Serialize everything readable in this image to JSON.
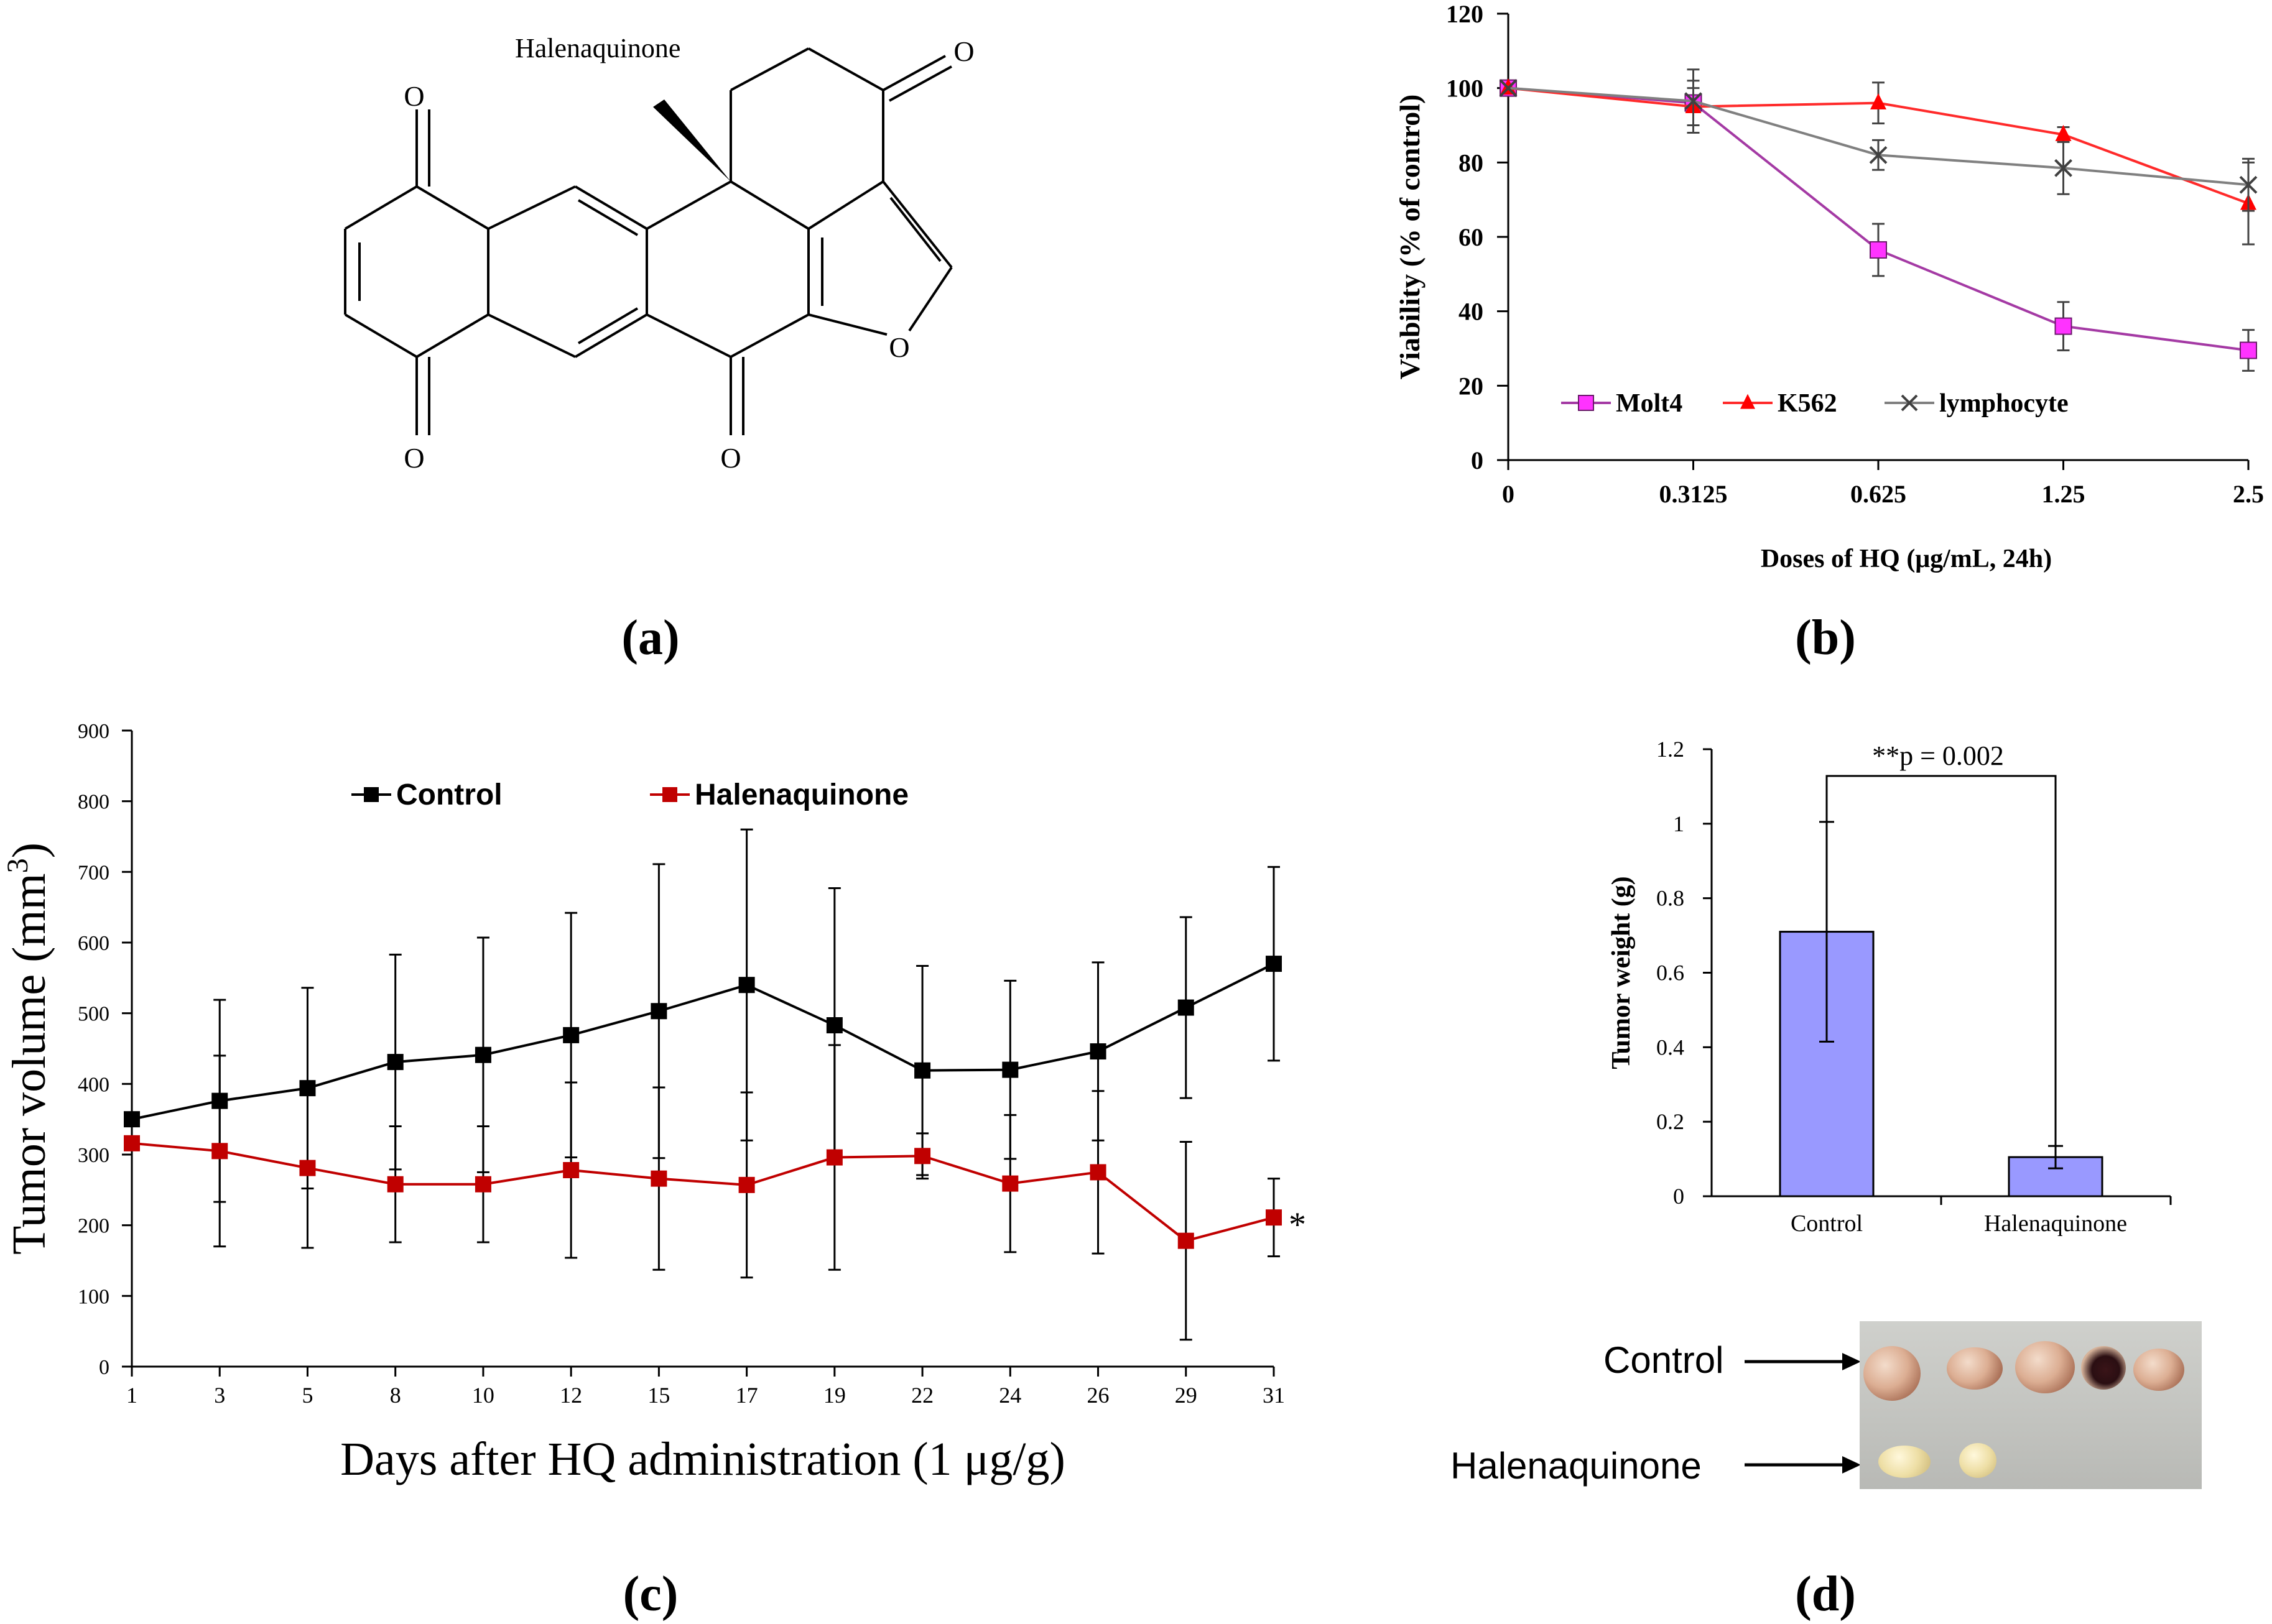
{
  "panel_labels": {
    "a": "(a)",
    "b": "(b)",
    "c": "(c)",
    "d": "(d)"
  },
  "structure": {
    "title": "Halenaquinone",
    "atoms": [
      "O",
      "O",
      "O",
      "O",
      "O"
    ]
  },
  "photo": {
    "control_label": "Control",
    "hq_label": "Halenaquinone"
  },
  "chart_data": [
    {
      "id": "b",
      "type": "line",
      "xlabel": "Doses of HQ (μg/mL, 24h)",
      "ylabel": "Viability (% of control)",
      "categories": [
        "0",
        "0.3125",
        "0.625",
        "1.25",
        "2.5"
      ],
      "ylim": [
        0,
        120
      ],
      "yticks": [
        0,
        20,
        40,
        60,
        80,
        100,
        120
      ],
      "legend": "bottom",
      "series": [
        {
          "name": "Molt4",
          "color": "#a43aa4",
          "marker": "square",
          "marker_color": "#ff33ff",
          "values": [
            100,
            96,
            56.5,
            36,
            29.5
          ],
          "errors": [
            0,
            6,
            7,
            6.5,
            5.5
          ]
        },
        {
          "name": "K562",
          "color": "#ff2a2a",
          "marker": "triangle",
          "marker_color": "#ff0000",
          "values": [
            100,
            95,
            96,
            87.5,
            69
          ],
          "errors": [
            0,
            5,
            5.5,
            2,
            11
          ]
        },
        {
          "name": "lymphocyte",
          "color": "#808080",
          "marker": "x",
          "marker_color": "#404040",
          "values": [
            100,
            96.5,
            82,
            78.5,
            74
          ],
          "errors": [
            0,
            8.5,
            4,
            7,
            7
          ]
        }
      ]
    },
    {
      "id": "c",
      "type": "line",
      "xlabel": "Days after HQ administration (1 μg/g)",
      "ylabel": "Tumor volume (mm",
      "ylabel_sup": "3",
      "ylabel_close": ")",
      "categories": [
        "1",
        "3",
        "5",
        "8",
        "10",
        "12",
        "15",
        "17",
        "19",
        "22",
        "24",
        "26",
        "29",
        "31"
      ],
      "ylim": [
        0,
        900
      ],
      "yticks": [
        0,
        100,
        200,
        300,
        400,
        500,
        600,
        700,
        800,
        900
      ],
      "legend": "top",
      "annotation": "*",
      "series": [
        {
          "name": "Control",
          "color": "#000000",
          "values": [
            350,
            376,
            394,
            431,
            441,
            469,
            503,
            540,
            483,
            419,
            420,
            446,
            508,
            570
          ],
          "errors": [
            0,
            143,
            142,
            152,
            166,
            173,
            208,
            220,
            194,
            148,
            126,
            126,
            128,
            137
          ]
        },
        {
          "name": "Halenaquinone",
          "color": "#c00000",
          "values": [
            316,
            305,
            281,
            258,
            258,
            278,
            266,
            257,
            296,
            298,
            259,
            275,
            178,
            211
          ],
          "errors": [
            0,
            135,
            113,
            82,
            82,
            124,
            129,
            131,
            159,
            32,
            97,
            115,
            140,
            55
          ]
        }
      ]
    },
    {
      "id": "d",
      "type": "bar",
      "xlabel": "",
      "ylabel": "Tumor weight (g)",
      "categories": [
        "Control",
        "Halenaquinone"
      ],
      "values": [
        0.71,
        0.105
      ],
      "errors": [
        0.295,
        0.03
      ],
      "ylim": [
        0,
        1.2
      ],
      "yticks": [
        "0",
        "0.2",
        "0.4",
        "0.6",
        "0.8",
        "1",
        "1.2"
      ],
      "color": "#9999ff",
      "annotation": "**p = 0.002"
    }
  ]
}
